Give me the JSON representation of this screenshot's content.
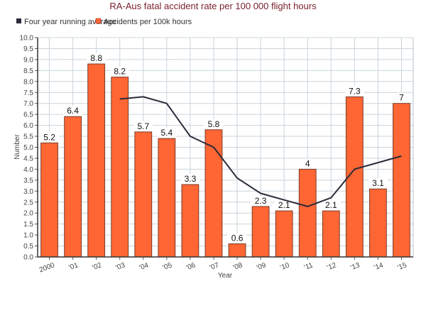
{
  "chart_data": {
    "type": "bar",
    "title": "RA-Aus fatal accident rate per 100 000 flight hours",
    "xlabel": "Year",
    "ylabel": "Number",
    "ylim": [
      0,
      10
    ],
    "ytick_step": 0.5,
    "yticks": [
      "0.0",
      "0.5",
      "1.0",
      "1.5",
      "2.0",
      "2.5",
      "3.0",
      "3.5",
      "4.0",
      "4.5",
      "5.0",
      "5.5",
      "6.0",
      "6.5",
      "7.0",
      "7.5",
      "8.0",
      "8.5",
      "9.0",
      "9.5",
      "10.0"
    ],
    "grid": true,
    "legend_position": "top-left",
    "categories": [
      "2000",
      "'01",
      "'02",
      "'03",
      "'04",
      "'05",
      "'06",
      "'07",
      "'08",
      "'09",
      "'10",
      "'11",
      "'12",
      "'13",
      "'14",
      "'15"
    ],
    "series": [
      {
        "name": "Accidents per 100k hours",
        "type": "bar",
        "color": "#ff6633",
        "values": [
          5.2,
          6.4,
          8.8,
          8.2,
          5.7,
          5.4,
          3.3,
          5.8,
          0.6,
          2.3,
          2.1,
          4,
          2.1,
          7.3,
          3.1,
          7
        ],
        "labels": [
          "5.2",
          "6.4",
          "8.8",
          "8.2",
          "5.7",
          "5.4",
          "3.3",
          "5.8",
          "0.6",
          "2.3",
          "2.1",
          "4",
          "2.1",
          "7.3",
          "3.1",
          "7"
        ]
      },
      {
        "name": "Four year running average",
        "type": "line",
        "color": "#2b2b3a",
        "values": [
          null,
          null,
          null,
          7.2,
          7.3,
          7.0,
          5.5,
          5.0,
          3.6,
          2.9,
          2.6,
          2.3,
          2.7,
          4.0,
          4.3,
          4.6
        ]
      }
    ],
    "legend": [
      {
        "label": "Four year running average",
        "color": "#2b2b3a"
      },
      {
        "label": "Accidents per 100k hours",
        "color": "#ff6633"
      }
    ]
  }
}
